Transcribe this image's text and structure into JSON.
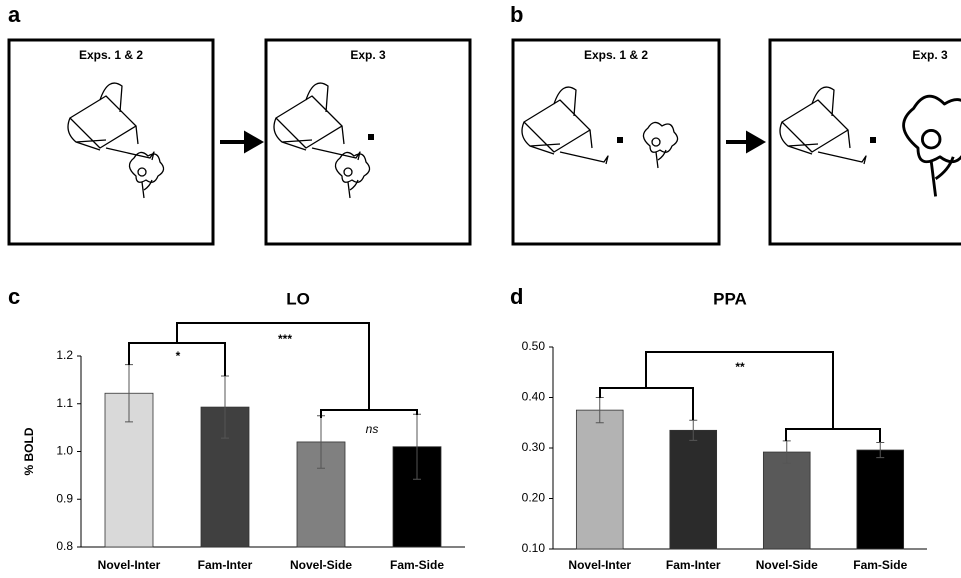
{
  "panels": [
    {
      "label": "a",
      "frames": [
        "Exps. 1 & 2",
        "Exp. 3"
      ]
    },
    {
      "label": "b",
      "frames": [
        "Exps. 1 & 2",
        "Exp. 3"
      ]
    }
  ],
  "chart_data": [
    {
      "type": "bar",
      "panel_label": "c",
      "title": "LO",
      "y_label": "% BOLD",
      "categories": [
        "Novel-Inter",
        "Fam-Inter",
        "Novel-Side",
        "Fam-Side"
      ],
      "values": [
        1.122,
        1.093,
        1.02,
        1.01
      ],
      "errors": [
        0.06,
        0.065,
        0.055,
        0.068
      ],
      "colors": [
        "#d9d9d9",
        "#404040",
        "#808080",
        "#000000"
      ],
      "ylim": [
        0.8,
        1.2
      ],
      "yticks": [
        0.8,
        0.9,
        {
          "value": 1,
          "label": "1.0"
        },
        1.1,
        1.2
      ],
      "annotations": [
        "*",
        "***",
        "ns"
      ]
    },
    {
      "type": "bar",
      "panel_label": "d",
      "title": "PPA",
      "categories": [
        "Novel-Inter",
        "Fam-Inter",
        "Novel-Side",
        "Fam-Side"
      ],
      "values": [
        0.375,
        0.335,
        0.292,
        0.296
      ],
      "errors": [
        0.025,
        0.02,
        0.022,
        0.015
      ],
      "colors": [
        "#b3b3b3",
        "#2b2b2b",
        "#595959",
        "#000000"
      ],
      "ylim": [
        0.1,
        0.5
      ],
      "yticks": [
        {
          "value": 0.1,
          "label": "0.10"
        },
        {
          "value": 0.2,
          "label": "0.20"
        },
        {
          "value": 0.3,
          "label": "0.30"
        },
        {
          "value": 0.4,
          "label": "0.40"
        },
        {
          "value": 0.5,
          "label": "0.50"
        }
      ],
      "annotations": [
        "**"
      ]
    }
  ]
}
